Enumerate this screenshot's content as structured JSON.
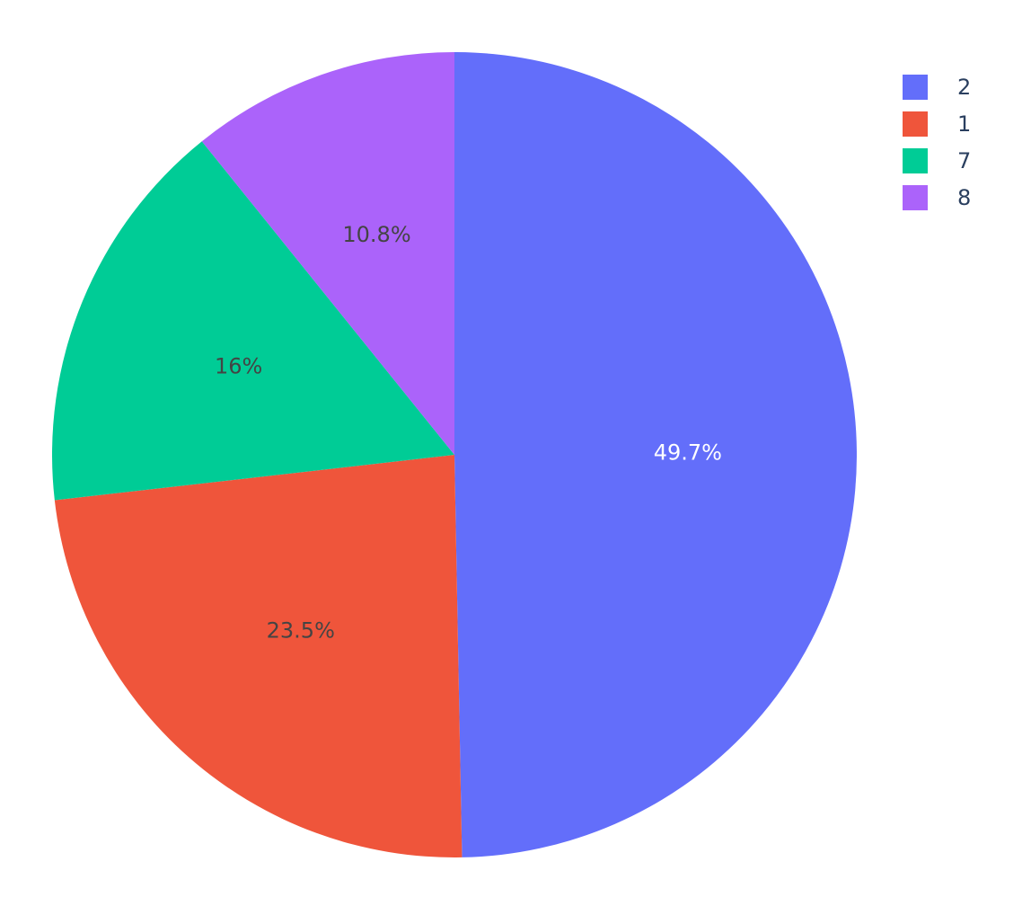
{
  "chart_data": {
    "type": "pie",
    "categories": [
      "2",
      "1",
      "7",
      "8"
    ],
    "values": [
      49.7,
      23.5,
      16.0,
      10.8
    ],
    "labels": [
      "49.7%",
      "23.5%",
      "16%",
      "10.8%"
    ],
    "colors": [
      "#636efa",
      "#ef553b",
      "#00cc96",
      "#ab63fa"
    ],
    "label_colors": [
      "#ffffff",
      "#444444",
      "#444444",
      "#444444"
    ],
    "start_angle": "12 o'clock",
    "direction": "clockwise",
    "legend_position": "top-right",
    "title": ""
  },
  "legend": {
    "items": [
      {
        "label": "2",
        "color": "#636efa"
      },
      {
        "label": "1",
        "color": "#ef553b"
      },
      {
        "label": "7",
        "color": "#00cc96"
      },
      {
        "label": "8",
        "color": "#ab63fa"
      }
    ]
  }
}
